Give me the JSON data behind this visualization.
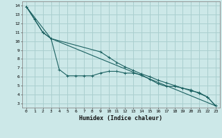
{
  "xlabel": "Humidex (Indice chaleur)",
  "bg_color": "#cce8e8",
  "grid_color": "#aacfcf",
  "line_color": "#1a6060",
  "xlim": [
    -0.5,
    23.5
  ],
  "ylim": [
    2.5,
    14.5
  ],
  "xticks": [
    0,
    1,
    2,
    3,
    4,
    5,
    6,
    7,
    8,
    9,
    10,
    11,
    12,
    13,
    14,
    15,
    16,
    17,
    18,
    19,
    20,
    21,
    22,
    23
  ],
  "yticks": [
    3,
    4,
    5,
    6,
    7,
    8,
    9,
    10,
    11,
    12,
    13,
    14
  ],
  "line1_x": [
    0,
    1,
    2,
    3,
    4,
    5,
    6,
    7,
    8,
    9,
    10,
    11,
    12,
    13,
    14,
    15,
    16,
    17,
    18,
    19,
    20,
    21,
    22,
    23
  ],
  "line1_y": [
    13.9,
    12.5,
    11.0,
    10.3,
    6.8,
    6.1,
    6.1,
    6.1,
    6.1,
    6.4,
    6.6,
    6.6,
    6.4,
    6.4,
    6.2,
    5.7,
    5.2,
    4.9,
    4.9,
    4.7,
    4.4,
    4.2,
    3.7,
    2.7
  ],
  "line2_x": [
    0,
    2,
    3,
    9,
    10,
    11,
    12,
    13,
    14,
    15,
    16,
    17,
    18,
    19,
    20,
    21,
    22,
    23
  ],
  "line2_y": [
    13.9,
    11.0,
    10.3,
    8.8,
    8.2,
    7.6,
    7.1,
    6.7,
    6.3,
    6.0,
    5.6,
    5.3,
    5.0,
    4.7,
    4.5,
    4.1,
    3.7,
    2.7
  ],
  "line3_x": [
    0,
    3,
    23
  ],
  "line3_y": [
    13.9,
    10.3,
    2.7
  ]
}
